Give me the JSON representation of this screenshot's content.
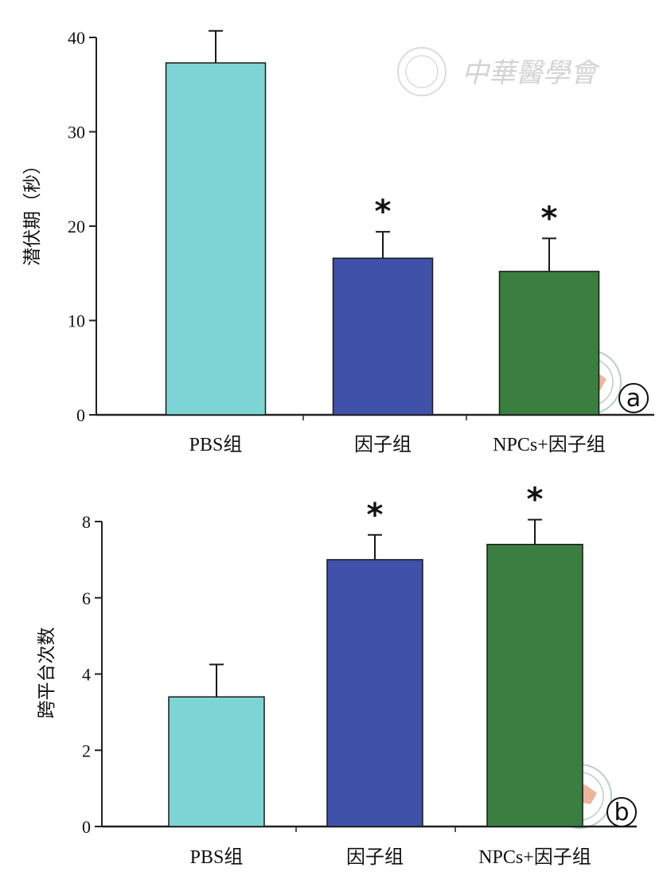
{
  "chart_data": [
    {
      "type": "bar",
      "panel": "a",
      "ylabel": "潜伏期（秒）",
      "ylim": [
        0,
        40
      ],
      "yticks": [
        0,
        10,
        20,
        30,
        40
      ],
      "categories": [
        "PBS组",
        "因子组",
        "NPCs+因子组"
      ],
      "values": [
        37.3,
        16.6,
        15.2
      ],
      "errors": [
        3.4,
        2.8,
        3.5
      ],
      "significance": [
        "",
        "*",
        "*"
      ],
      "colors": [
        "#7dd4d4",
        "#3f51a8",
        "#3a7f3f"
      ],
      "grid": false
    },
    {
      "type": "bar",
      "panel": "b",
      "ylabel": "跨平台次数",
      "ylim": [
        0,
        8
      ],
      "yticks": [
        0,
        2,
        4,
        6,
        8
      ],
      "categories": [
        "PBS组",
        "因子组",
        "NPCs+因子组"
      ],
      "values": [
        3.4,
        7.0,
        7.4
      ],
      "errors": [
        0.85,
        0.65,
        0.65
      ],
      "significance": [
        "",
        "*",
        "*"
      ],
      "colors": [
        "#7dd4d4",
        "#3f51a8",
        "#3a7f3f"
      ],
      "grid": false
    }
  ],
  "watermark": {
    "text": "中華醫學會",
    "icons": [
      "association-seal-icon",
      "china-map-seal-icon"
    ]
  }
}
